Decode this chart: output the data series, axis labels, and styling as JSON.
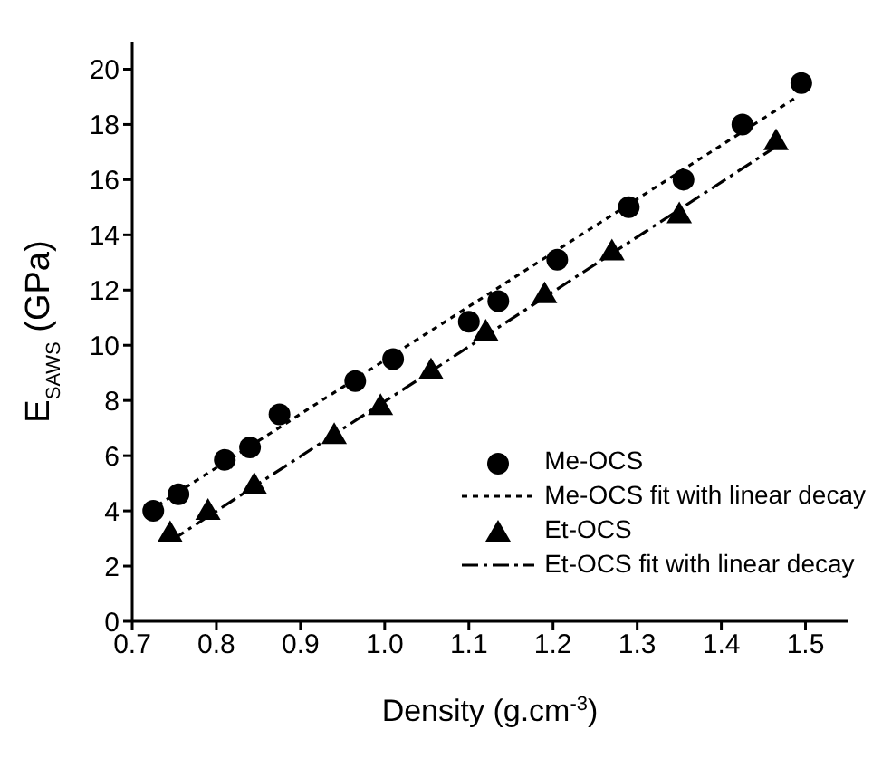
{
  "chart_data": {
    "type": "scatter",
    "xlabel": "Density (g.cm$^{-3}$)",
    "ylabel": "E$_{SAWS}$ (GPa)",
    "xlim": [
      0.7,
      1.55
    ],
    "xticks": [
      0.7,
      0.8,
      0.9,
      {
        "value": 1,
        "label": "1.0"
      },
      1.1,
      1.2,
      1.3,
      1.4,
      1.5
    ],
    "ylim": [
      0,
      21
    ],
    "yticks": [
      0,
      2,
      4,
      6,
      8,
      10,
      12,
      14,
      16,
      18,
      20
    ],
    "legend": "bottom right",
    "series": [
      {
        "name": "Me-OCS",
        "marker": "circle",
        "color": "#000000",
        "x": [
          0.725,
          0.755,
          0.81,
          0.84,
          0.875,
          0.965,
          1.01,
          1.1,
          1.135,
          1.205,
          1.29,
          1.355,
          1.425,
          1.495
        ],
        "values": [
          4.0,
          4.6,
          5.85,
          6.3,
          7.5,
          8.7,
          9.5,
          10.85,
          11.6,
          13.1,
          15.0,
          16.0,
          18.0,
          19.5
        ]
      },
      {
        "name": "Me-OCS fit with linear decay",
        "type": "line",
        "line_style": "dotted",
        "color": "#000000",
        "x": [
          0.73,
          1.49
        ],
        "values": [
          4.2,
          19.0
        ]
      },
      {
        "name": "Et-OCS",
        "marker": "triangle",
        "color": "#000000",
        "x": [
          0.745,
          0.79,
          0.845,
          0.94,
          0.995,
          1.055,
          1.12,
          1.19,
          1.27,
          1.35,
          1.465
        ],
        "values": [
          3.2,
          4.0,
          4.95,
          6.75,
          7.8,
          9.1,
          10.5,
          11.85,
          13.4,
          14.75,
          17.4
        ]
      },
      {
        "name": "Et-OCS fit with linear decay",
        "type": "line",
        "line_style": "dashdot",
        "color": "#000000",
        "x": [
          0.745,
          1.465
        ],
        "values": [
          2.9,
          17.2
        ]
      }
    ]
  }
}
